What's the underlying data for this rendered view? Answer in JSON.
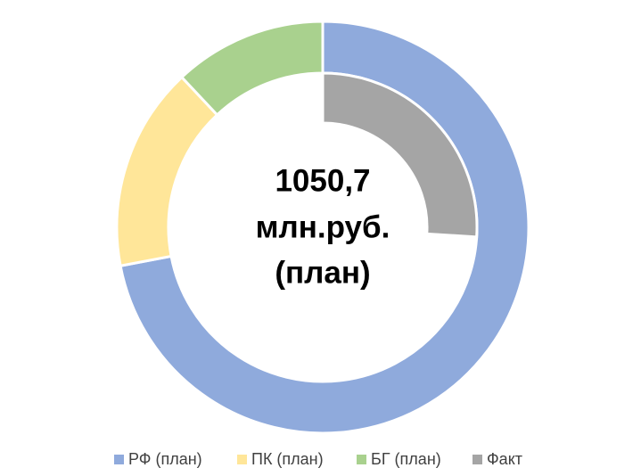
{
  "chart_data": {
    "type": "doughnut",
    "center_text": [
      "1050,7",
      "млн.руб.",
      "(план)"
    ],
    "outer": {
      "categories": [
        "РФ (план)",
        "ПК (план)",
        "БГ (план)"
      ],
      "values": [
        72,
        16,
        12
      ],
      "colors": [
        "#8faadc",
        "#ffe699",
        "#a9d18e"
      ]
    },
    "inner": {
      "categories": [
        "Факт"
      ],
      "values": [
        26
      ],
      "colors": [
        "#a5a5a5"
      ]
    }
  }
}
